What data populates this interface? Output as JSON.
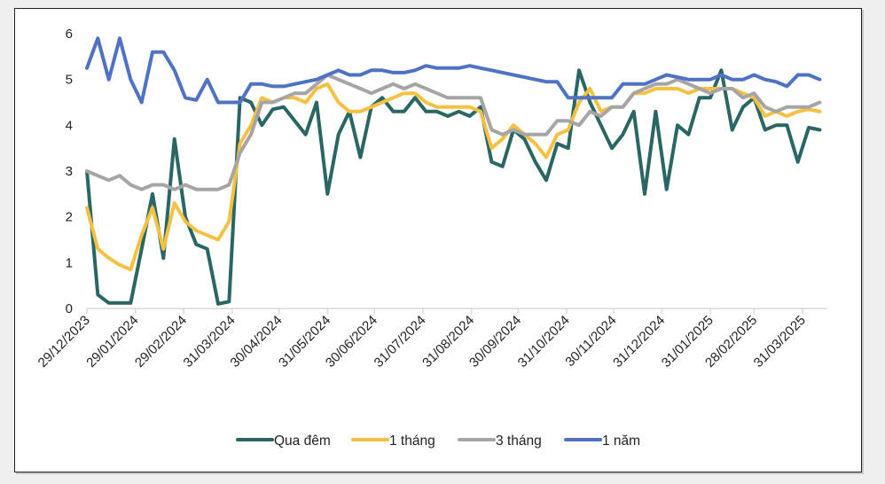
{
  "chart_data": {
    "type": "line",
    "title": "",
    "xlabel": "",
    "ylabel": "",
    "ylim": [
      0,
      6
    ],
    "yticks": [
      "0",
      "1",
      "2",
      "3",
      "4",
      "5",
      "6"
    ],
    "xlim": [
      "2023-12-29",
      "2025-04-16"
    ],
    "xtick_dates": [
      "2023-12-29",
      "2024-01-29",
      "2024-02-29",
      "2024-03-31",
      "2024-04-30",
      "2024-05-31",
      "2024-06-30",
      "2024-07-31",
      "2024-08-31",
      "2024-09-30",
      "2024-10-31",
      "2024-11-30",
      "2024-12-31",
      "2025-01-31",
      "2025-02-28",
      "2025-03-31"
    ],
    "xtick_labels": [
      "29/12/2023",
      "29/01/2024",
      "29/02/2024",
      "31/03/2024",
      "30/04/2024",
      "31/05/2024",
      "30/06/2024",
      "31/07/2024",
      "31/08/2024",
      "30/09/2024",
      "31/10/2024",
      "30/11/2024",
      "31/12/2024",
      "31/01/2025",
      "28/02/2025",
      "31/03/2025"
    ],
    "grid": false,
    "legend_position": "bottom",
    "x": [
      "2023-12-29",
      "2024-01-05",
      "2024-01-12",
      "2024-01-19",
      "2024-01-26",
      "2024-02-02",
      "2024-02-09",
      "2024-02-16",
      "2024-02-23",
      "2024-03-01",
      "2024-03-08",
      "2024-03-15",
      "2024-03-22",
      "2024-03-29",
      "2024-04-05",
      "2024-04-12",
      "2024-04-19",
      "2024-04-26",
      "2024-05-03",
      "2024-05-10",
      "2024-05-17",
      "2024-05-24",
      "2024-05-31",
      "2024-06-07",
      "2024-06-14",
      "2024-06-21",
      "2024-06-28",
      "2024-07-05",
      "2024-07-12",
      "2024-07-19",
      "2024-07-26",
      "2024-08-02",
      "2024-08-09",
      "2024-08-16",
      "2024-08-23",
      "2024-08-30",
      "2024-09-06",
      "2024-09-13",
      "2024-09-20",
      "2024-09-27",
      "2024-10-04",
      "2024-10-11",
      "2024-10-18",
      "2024-10-25",
      "2024-11-01",
      "2024-11-08",
      "2024-11-15",
      "2024-11-22",
      "2024-11-29",
      "2024-12-06",
      "2024-12-13",
      "2024-12-20",
      "2024-12-27",
      "2025-01-03",
      "2025-01-10",
      "2025-01-17",
      "2025-01-24",
      "2025-01-31",
      "2025-02-07",
      "2025-02-14",
      "2025-02-21",
      "2025-02-28",
      "2025-03-07",
      "2025-03-14",
      "2025-03-21",
      "2025-03-28",
      "2025-04-04",
      "2025-04-11"
    ],
    "series": [
      {
        "name": "Qua đêm",
        "color": "#2a6663",
        "values": [
          3.0,
          0.3,
          0.12,
          0.12,
          0.12,
          1.3,
          2.5,
          1.1,
          3.7,
          2.0,
          1.4,
          1.3,
          0.1,
          0.15,
          4.6,
          4.5,
          4.0,
          4.35,
          4.4,
          4.1,
          3.8,
          4.5,
          2.5,
          3.8,
          4.3,
          3.3,
          4.4,
          4.6,
          4.3,
          4.3,
          4.6,
          4.3,
          4.3,
          4.2,
          4.3,
          4.2,
          4.4,
          3.2,
          3.1,
          3.9,
          3.7,
          3.2,
          2.8,
          3.6,
          3.5,
          5.2,
          4.5,
          4.0,
          3.5,
          3.8,
          4.3,
          2.5,
          4.3,
          2.6,
          4.0,
          3.8,
          4.6,
          4.6,
          5.2,
          3.9,
          4.4,
          4.6,
          3.9,
          4.0,
          4.0,
          3.2,
          3.95,
          3.9
        ]
      },
      {
        "name": "1 tháng",
        "color": "#f6c142",
        "values": [
          2.2,
          1.3,
          1.1,
          0.95,
          0.85,
          1.6,
          2.2,
          1.3,
          2.3,
          1.9,
          1.7,
          1.6,
          1.5,
          1.9,
          3.6,
          4.0,
          4.6,
          4.5,
          4.6,
          4.6,
          4.5,
          4.8,
          4.9,
          4.5,
          4.3,
          4.3,
          4.4,
          4.5,
          4.6,
          4.7,
          4.7,
          4.5,
          4.4,
          4.4,
          4.4,
          4.4,
          4.3,
          3.5,
          3.7,
          4.0,
          3.8,
          3.6,
          3.3,
          3.8,
          3.9,
          4.5,
          4.8,
          4.3,
          4.4,
          4.4,
          4.7,
          4.7,
          4.8,
          4.8,
          4.8,
          4.7,
          4.8,
          4.8,
          4.8,
          4.8,
          4.7,
          4.6,
          4.2,
          4.3,
          4.2,
          4.3,
          4.35,
          4.3
        ]
      },
      {
        "name": "3 tháng",
        "color": "#a5a5a5",
        "values": [
          3.0,
          2.9,
          2.8,
          2.9,
          2.7,
          2.6,
          2.7,
          2.7,
          2.6,
          2.7,
          2.6,
          2.6,
          2.6,
          2.7,
          3.4,
          3.8,
          4.5,
          4.5,
          4.6,
          4.7,
          4.7,
          4.9,
          5.1,
          5.0,
          4.9,
          4.8,
          4.7,
          4.8,
          4.9,
          4.8,
          4.9,
          4.8,
          4.7,
          4.6,
          4.6,
          4.6,
          4.6,
          3.9,
          3.8,
          3.9,
          3.8,
          3.8,
          3.8,
          4.1,
          4.1,
          4.0,
          4.3,
          4.2,
          4.4,
          4.4,
          4.7,
          4.8,
          4.9,
          4.9,
          5.0,
          4.9,
          4.8,
          4.7,
          4.8,
          4.8,
          4.6,
          4.7,
          4.4,
          4.3,
          4.4,
          4.4,
          4.4,
          4.5
        ]
      },
      {
        "name": "1 năm",
        "color": "#4f72c4",
        "values": [
          5.25,
          5.9,
          5.0,
          5.9,
          5.0,
          4.5,
          5.6,
          5.6,
          5.2,
          4.6,
          4.55,
          5.0,
          4.5,
          4.5,
          4.5,
          4.9,
          4.9,
          4.85,
          4.85,
          4.9,
          4.95,
          5.0,
          5.1,
          5.2,
          5.1,
          5.1,
          5.2,
          5.2,
          5.15,
          5.15,
          5.2,
          5.3,
          5.25,
          5.25,
          5.25,
          5.3,
          5.25,
          5.2,
          5.15,
          5.1,
          5.05,
          5.0,
          4.95,
          4.95,
          4.6,
          4.6,
          4.6,
          4.6,
          4.6,
          4.9,
          4.9,
          4.9,
          5.0,
          5.1,
          5.05,
          5.0,
          5.0,
          5.0,
          5.1,
          5.0,
          5.0,
          5.1,
          5.0,
          4.95,
          4.85,
          5.1,
          5.1,
          5.0
        ]
      }
    ]
  }
}
